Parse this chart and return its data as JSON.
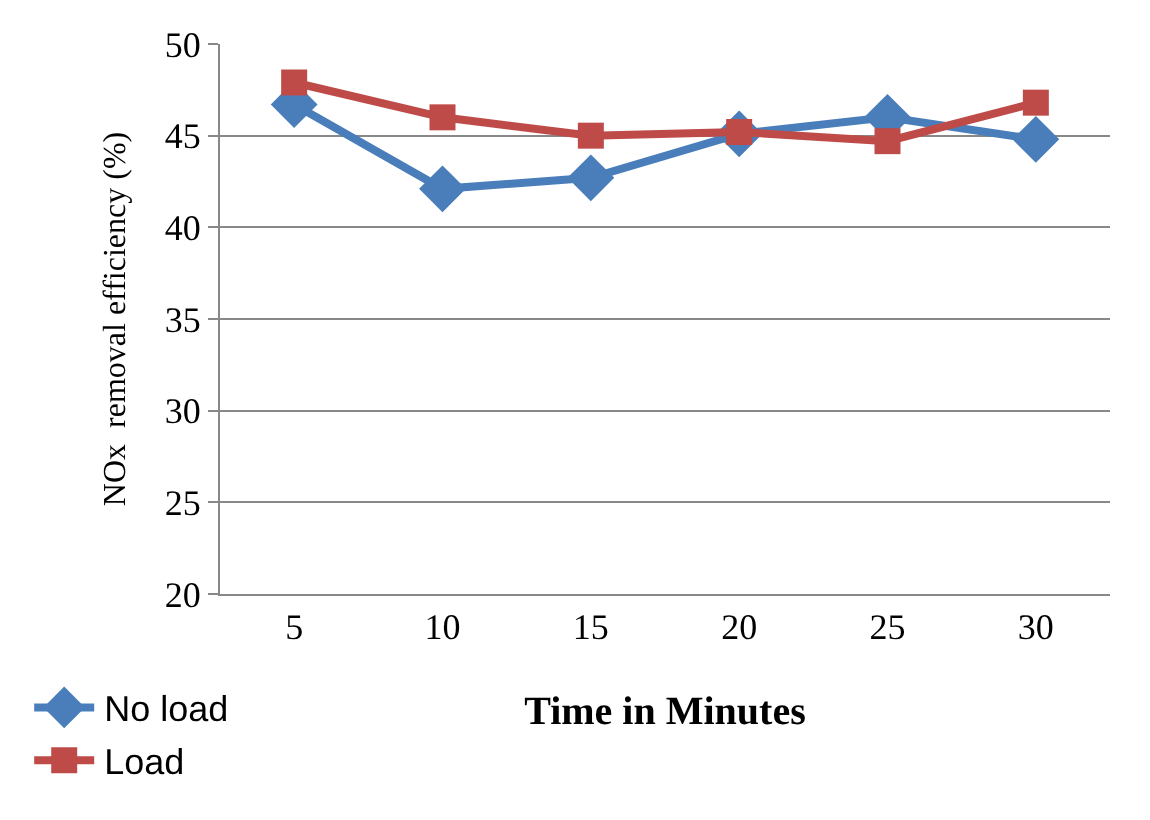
{
  "chart_data": {
    "type": "line",
    "xlabel": "Time in Minutes",
    "ylabel": "NOx  removal efficiency (%)",
    "categories": [
      "5",
      "10",
      "15",
      "20",
      "25",
      "30"
    ],
    "series": [
      {
        "name": "No load",
        "color": "#4a7ebb",
        "marker": "diamond",
        "values": [
          46.7,
          42.1,
          42.7,
          45.1,
          46.0,
          44.8
        ]
      },
      {
        "name": "Load",
        "color": "#be4b48",
        "marker": "square",
        "values": [
          47.9,
          46.0,
          45.0,
          45.2,
          44.7,
          46.8
        ]
      }
    ],
    "ylim": [
      20,
      50
    ],
    "yticks": [
      20,
      25,
      30,
      35,
      40,
      45,
      50
    ],
    "grid": "y",
    "legend": "bottom left"
  }
}
